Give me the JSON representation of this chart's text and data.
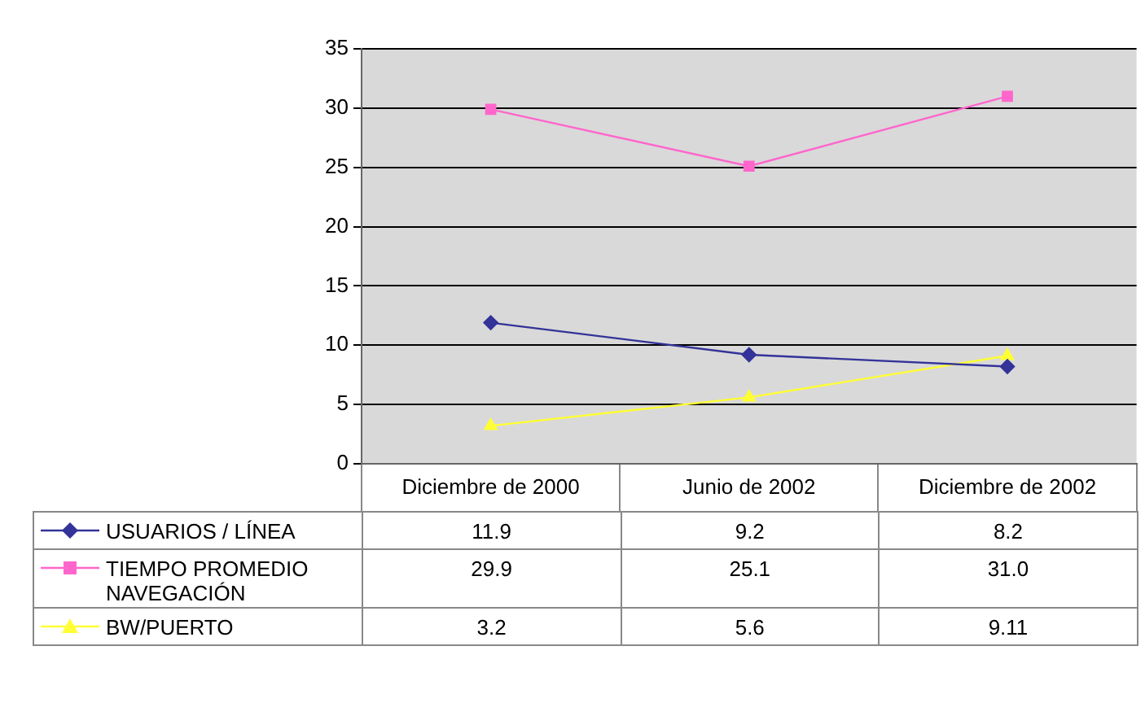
{
  "chart_data": {
    "type": "line",
    "categories": [
      "Diciembre de 2000",
      "Junio de 2002",
      "Diciembre de 2002"
    ],
    "series": [
      {
        "name": "USUARIOS / LÍNEA",
        "color": "#333399",
        "marker": "diamond",
        "values": [
          11.9,
          9.2,
          8.2
        ],
        "value_labels": [
          "11.9",
          "9.2",
          "8.2"
        ]
      },
      {
        "name": "TIEMPO PROMEDIO NAVEGACIÓN",
        "color": "#ff66cc",
        "marker": "square",
        "values": [
          29.9,
          25.1,
          31.0
        ],
        "value_labels": [
          "29.9",
          "25.1",
          "31.0"
        ]
      },
      {
        "name": "BW/PUERTO",
        "color": "#ffff33",
        "marker": "triangle",
        "values": [
          3.2,
          5.6,
          9.11
        ],
        "value_labels": [
          "3.2",
          "5.6",
          "9.11"
        ]
      }
    ],
    "ylim": [
      0,
      35
    ],
    "yticks": [
      0,
      5,
      10,
      15,
      20,
      25,
      30,
      35
    ],
    "grid": "y",
    "legend": "bottom"
  }
}
